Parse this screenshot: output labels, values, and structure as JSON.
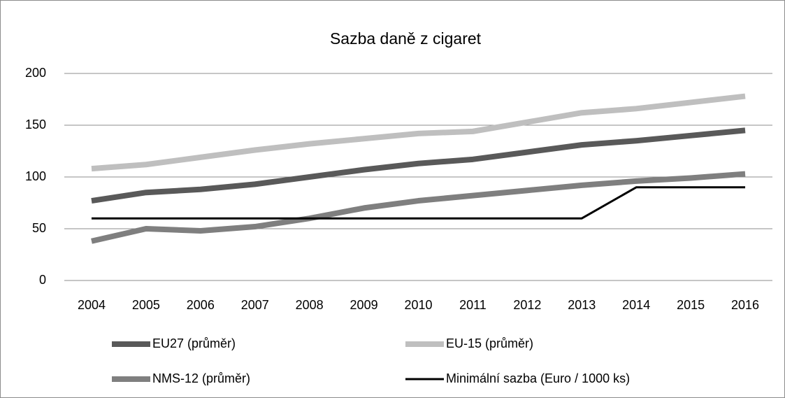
{
  "chart_data": {
    "type": "line",
    "title": "Sazba daně z cigaret",
    "categories": [
      "2004",
      "2005",
      "2006",
      "2007",
      "2008",
      "2009",
      "2010",
      "2011",
      "2012",
      "2013",
      "2014",
      "2015",
      "2016"
    ],
    "series": [
      {
        "name": "EU27 (průměr)",
        "color": "#595959",
        "values": [
          77,
          85,
          88,
          93,
          100,
          107,
          113,
          117,
          124,
          131,
          135,
          140,
          145
        ]
      },
      {
        "name": "EU-15 (průměr)",
        "color": "#bfbfbf",
        "values": [
          108,
          112,
          119,
          126,
          132,
          137,
          142,
          144,
          153,
          162,
          166,
          172,
          178
        ]
      },
      {
        "name": "NMS-12 (průměr)",
        "color": "#7f7f7f",
        "values": [
          38,
          50,
          48,
          52,
          60,
          70,
          77,
          82,
          87,
          92,
          96,
          99,
          103
        ]
      },
      {
        "name": "Minimální sazba (Euro / 1000 ks)",
        "color": "#000000",
        "values": [
          60,
          60,
          60,
          60,
          60,
          60,
          60,
          60,
          60,
          60,
          90,
          90,
          90
        ]
      }
    ],
    "ylim": [
      0,
      200
    ],
    "yticks": [
      0,
      50,
      100,
      150,
      200
    ],
    "grid": true
  }
}
